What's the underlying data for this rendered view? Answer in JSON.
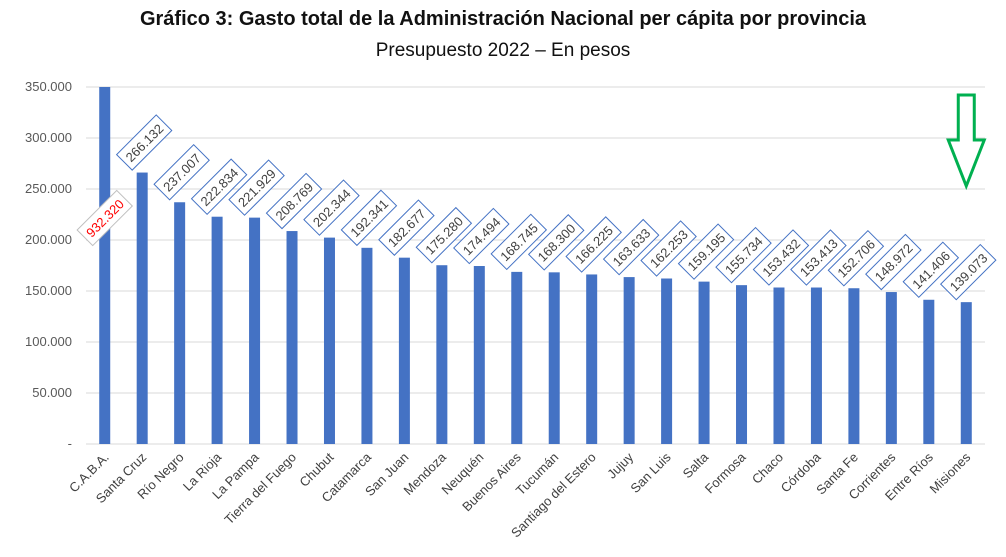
{
  "chart_data": {
    "type": "bar",
    "title": "Gráfico 3: Gasto total de la Administración Nacional per cápita por provincia",
    "subtitle": "Presupuesto 2022 – En pesos",
    "ylim": [
      0,
      350000
    ],
    "grid": true,
    "yticks": [
      {
        "value": 0,
        "label": "-"
      },
      {
        "value": 50000,
        "label": "50.000"
      },
      {
        "value": 100000,
        "label": "100.000"
      },
      {
        "value": 150000,
        "label": "150.000"
      },
      {
        "value": 200000,
        "label": "200.000"
      },
      {
        "value": 250000,
        "label": "250.000"
      },
      {
        "value": 300000,
        "label": "300.000"
      },
      {
        "value": 350000,
        "label": "350.000"
      }
    ],
    "categories": [
      "C.A.B.A.",
      "Santa Cruz",
      "Río Negro",
      "La Rioja",
      "La Pampa",
      "Tierra del Fuego",
      "Chubut",
      "Catamarca",
      "San Juan",
      "Mendoza",
      "Neuquén",
      "Buenos Aires",
      "Tucumán",
      "Santiago del Estero",
      "Jujuy",
      "San Luis",
      "Salta",
      "Formosa",
      "Chaco",
      "Córdoba",
      "Santa Fe",
      "Corrientes",
      "Entre Ríos",
      "Misiones"
    ],
    "values": [
      932320,
      266132,
      237007,
      222834,
      221929,
      208769,
      202344,
      192341,
      182677,
      175280,
      174494,
      168745,
      168300,
      166225,
      163633,
      162253,
      159195,
      155734,
      153432,
      153413,
      152706,
      148972,
      141406,
      139073
    ],
    "data_labels": [
      "932.320",
      "266.132",
      "237.007",
      "222.834",
      "221.929",
      "208.769",
      "202.344",
      "192.341",
      "182.677",
      "175.280",
      "174.494",
      "168.745",
      "168.300",
      "166.225",
      "163.633",
      "162.253",
      "159.195",
      "155.734",
      "153.432",
      "153.413",
      "152.706",
      "148.972",
      "141.406",
      "139.073"
    ],
    "colors": {
      "bar": "#4472c4",
      "highlight_label": "#ff0000",
      "arrow": "#00b050"
    },
    "annotations": [
      {
        "type": "arrow",
        "direction": "down",
        "category": "Misiones",
        "color": "#00b050"
      }
    ]
  }
}
